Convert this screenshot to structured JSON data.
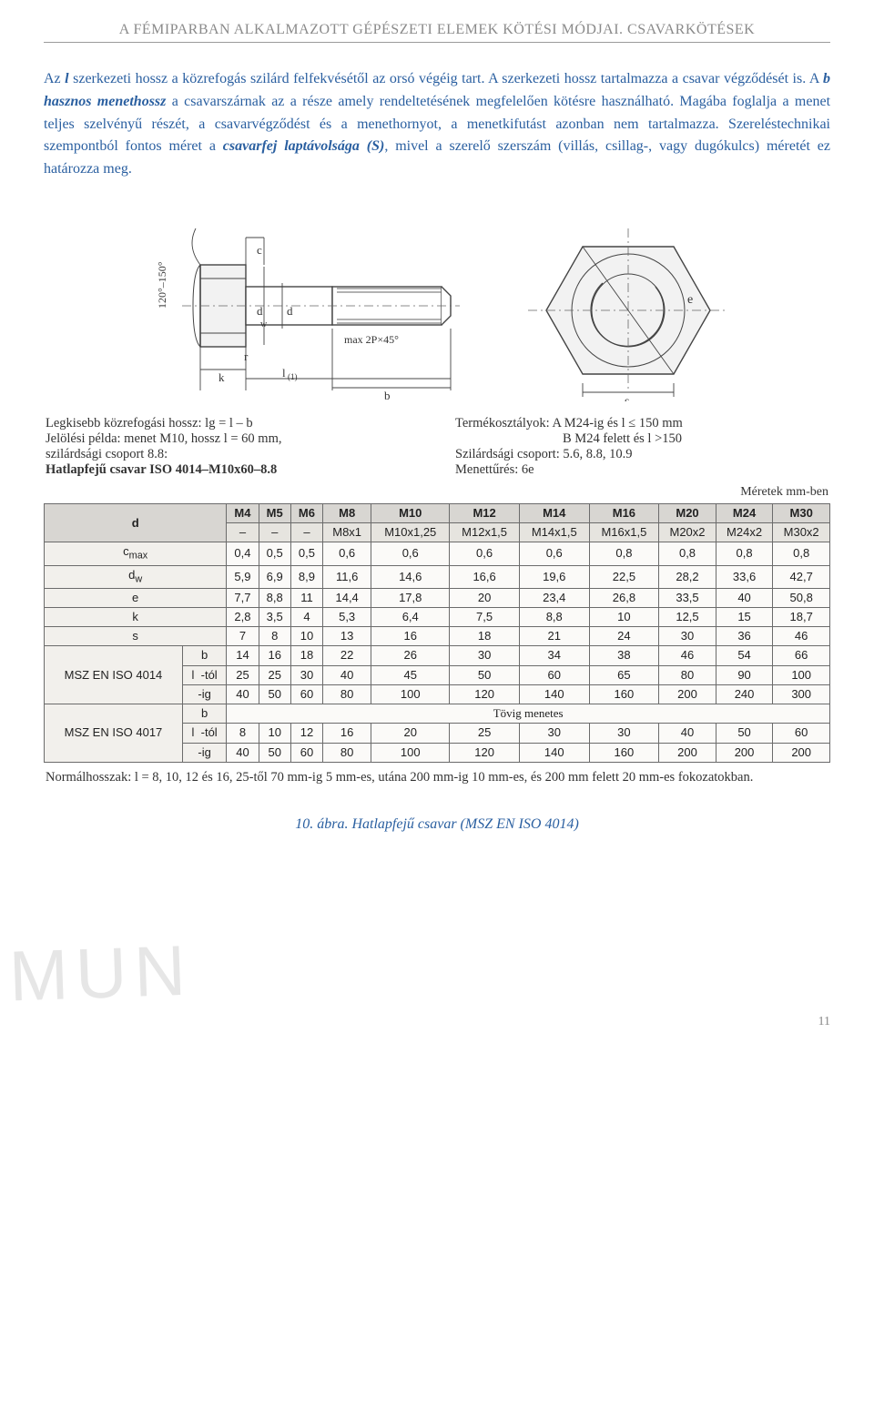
{
  "header": {
    "title": "A FÉMIPARBAN ALKALMAZOTT GÉPÉSZETI ELEMEK KÖTÉSI MÓDJAI. CSAVARKÖTÉSEK"
  },
  "paragraph": {
    "p1a": "Az ",
    "p1b": "l",
    "p1c": " szerkezeti hossz a közrefogás szilárd felfekvésétől az orsó végéig tart. A szerkezeti hossz tartalmazza a csavar végződését is. A ",
    "p1d": "b hasznos menethossz",
    "p1e": " a csavarszárnak az a része amely rendeltetésének megfelelően kötésre használható. Magába foglalja a menet teljes szelvényű részét, a csavarvégződést és a menethornyot, a menetkifutást azonban nem tartalmazza. Szereléstechnikai szempontból fontos méret a ",
    "p1f": "csavarfej laptávolsága (S)",
    "p1g": ", mivel a szerelő szerszám (villás, csillag-, vagy dugókulcs) méretét ez határozza meg."
  },
  "drawing": {
    "labels": {
      "angle": "120°–150°",
      "c": "c",
      "dw": "d_w",
      "r": "r",
      "k": "k",
      "l1": "l(1)",
      "b": "b",
      "max2p": "max 2P×45°",
      "d": "d",
      "e": "e",
      "s": "s"
    }
  },
  "meta": {
    "leftLines": {
      "l1": "Legkisebb közrefogási hossz: lg = l – b",
      "l2": "Jelölési példa: menet M10, hossz l = 60 mm,",
      "l3": "szilárdsági csoport 8.8:",
      "l4": "Hatlapfejű csavar ISO 4014–M10x60–8.8"
    },
    "rightLines": {
      "r1a": "Termékosztályok:  A M24-ig és  l ≤ 150 mm",
      "r1b": "B M24 felett és l >150",
      "r2": "Szilárdsági csoport: 5.6, 8.8, 10.9",
      "r3": "Menettűrés: 6e"
    },
    "unitsNote": "Méretek mm-ben"
  },
  "table": {
    "sizes": [
      "M4",
      "M5",
      "M6",
      "M8",
      "M10",
      "M12",
      "M14",
      "M16",
      "M20",
      "M24",
      "M30"
    ],
    "fineRow": [
      "–",
      "–",
      "–",
      "M8x1",
      "M10x1,25",
      "M12x1,5",
      "M14x1,5",
      "M16x1,5",
      "M20x2",
      "M24x2",
      "M30x2"
    ],
    "rows": [
      {
        "label": "c_max",
        "vals": [
          "0,4",
          "0,5",
          "0,5",
          "0,6",
          "0,6",
          "0,6",
          "0,6",
          "0,8",
          "0,8",
          "0,8",
          "0,8"
        ]
      },
      {
        "label": "d_w",
        "vals": [
          "5,9",
          "6,9",
          "8,9",
          "11,6",
          "14,6",
          "16,6",
          "19,6",
          "22,5",
          "28,2",
          "33,6",
          "42,7"
        ]
      },
      {
        "label": "e",
        "vals": [
          "7,7",
          "8,8",
          "11",
          "14,4",
          "17,8",
          "20",
          "23,4",
          "26,8",
          "33,5",
          "40",
          "50,8"
        ]
      },
      {
        "label": "k",
        "vals": [
          "2,8",
          "3,5",
          "4",
          "5,3",
          "6,4",
          "7,5",
          "8,8",
          "10",
          "12,5",
          "15",
          "18,7"
        ]
      },
      {
        "label": "s",
        "vals": [
          "7",
          "8",
          "10",
          "13",
          "16",
          "18",
          "21",
          "24",
          "30",
          "36",
          "46"
        ]
      }
    ],
    "std4014": {
      "name": "MSZ EN ISO 4014",
      "b": [
        "14",
        "16",
        "18",
        "22",
        "26",
        "30",
        "34",
        "38",
        "46",
        "54",
        "66"
      ],
      "ltol": [
        "25",
        "25",
        "30",
        "40",
        "45",
        "50",
        "60",
        "65",
        "80",
        "90",
        "100"
      ],
      "lig": [
        "40",
        "50",
        "60",
        "80",
        "100",
        "120",
        "140",
        "160",
        "200",
        "240",
        "300"
      ]
    },
    "std4017": {
      "name": "MSZ EN ISO 4017",
      "bnote": "Tövig menetes",
      "ltol": [
        "8",
        "10",
        "12",
        "16",
        "20",
        "25",
        "30",
        "30",
        "40",
        "50",
        "60"
      ],
      "lig": [
        "40",
        "50",
        "60",
        "80",
        "100",
        "120",
        "140",
        "160",
        "200",
        "200",
        "200"
      ]
    },
    "labels": {
      "d": "d",
      "l": "l",
      "b": "b",
      "tol": "-tól",
      "ig": "-ig"
    }
  },
  "footnote": "Normálhosszak: l = 8, 10, 12 és 16, 25-től 70 mm-ig 5 mm-es, utána 200 mm-ig 10 mm-es, és 200 mm felett 20 mm-es fokozatokban.",
  "caption": "10. ábra. Hatlapfejű csavar (MSZ EN ISO 4014)",
  "watermark": "MUN",
  "pageNumber": "11",
  "colors": {
    "headerGray": "#8a8a8a",
    "bodyBlue": "#2a5fa0",
    "tableBorder": "#6b6b6b",
    "tableHeaderBg": "#d8d6d2",
    "tableCellBg": "#fbfaf8",
    "shadedBg": "#e6e4df",
    "watermark": "rgba(200,200,200,0.45)"
  }
}
